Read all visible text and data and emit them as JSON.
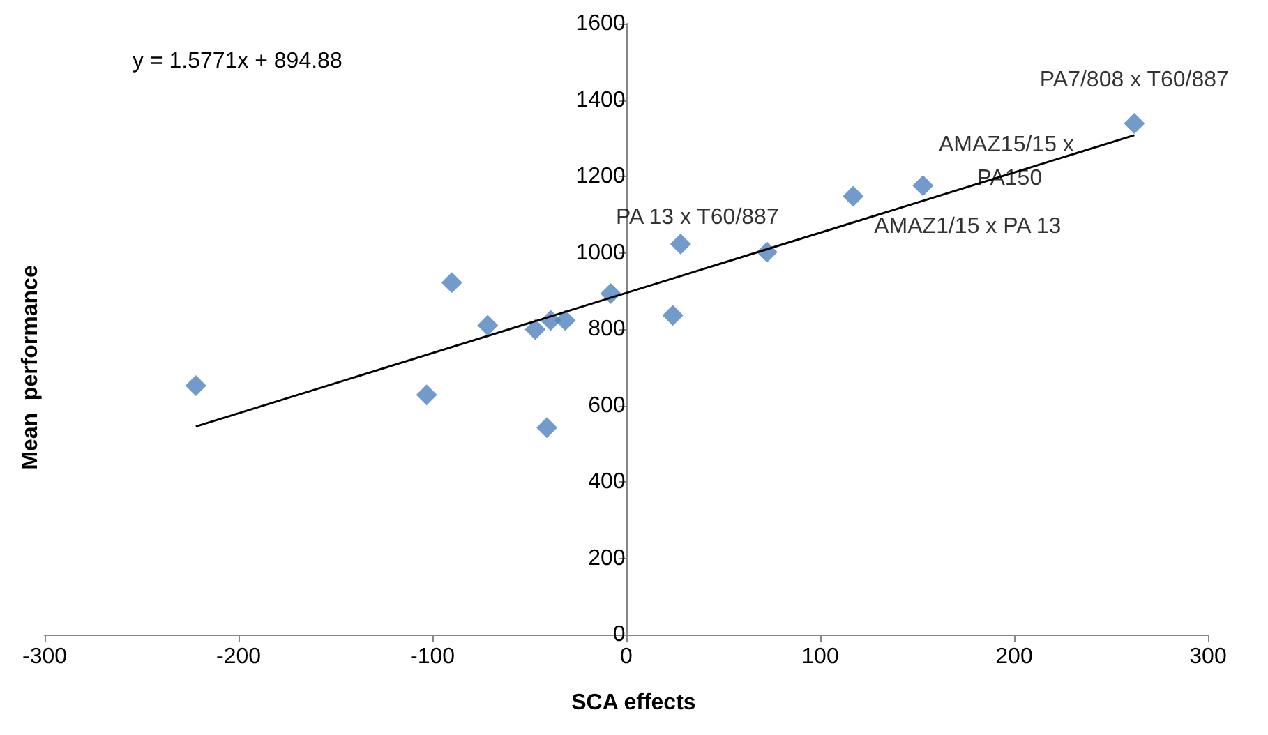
{
  "chart_data": {
    "type": "scatter",
    "xlabel": "SCA effects",
    "ylabel": "Mean  performance",
    "xlim": [
      -300,
      300
    ],
    "xticks": [
      -300,
      -200,
      -100,
      0,
      100,
      200,
      300
    ],
    "ylim": [
      0,
      1600
    ],
    "yticks": [
      0,
      200,
      400,
      600,
      800,
      1000,
      1200,
      1400,
      1600
    ],
    "grid": false,
    "marker": "diamond",
    "series": [
      {
        "color": "#4f81bd",
        "x": [
          -222,
          -103,
          -90,
          -71.5,
          -47,
          -39,
          -31.5,
          -41,
          -8,
          24,
          28,
          72.6,
          117,
          153,
          262
        ],
        "values": [
          652,
          628,
          922,
          810,
          799,
          823,
          823,
          542,
          893,
          836,
          1023,
          1002,
          1148,
          1176,
          1339
        ]
      },
      {
        "type": "line",
        "marker": "none",
        "color": "#000000",
        "x": [
          -222,
          262
        ],
        "values": [
          545,
          1308
        ]
      }
    ],
    "annotations": [
      "y = 1.5771x + 894.88",
      {
        "text": "PA7/808 x T60/887",
        "x": 262,
        "y": 1339
      },
      {
        "text": "AMAZ15/15 x PA150",
        "x": 153,
        "y": 1176
      },
      {
        "text": "AMAZ1/15 x PA 13",
        "x": 117,
        "y": 1148
      },
      {
        "text": "PA 13 x T60/887",
        "x": 28,
        "y": 1023
      }
    ]
  }
}
